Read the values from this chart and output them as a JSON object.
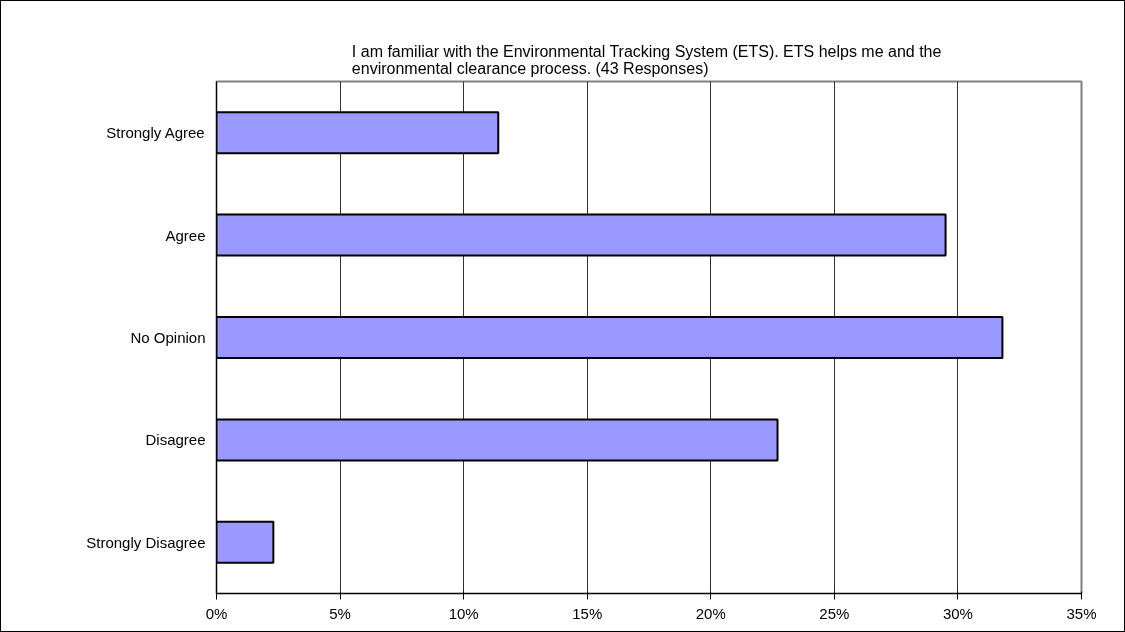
{
  "chart_data": {
    "type": "bar",
    "orientation": "horizontal",
    "title": "I am familiar with the Environmental Tracking System (ETS).  ETS helps me and the\nenvironmental clearance process. (43 Responses)",
    "categories": [
      "Strongly Agree",
      "Agree",
      "No Opinion",
      "Disagree",
      "Strongly Disagree"
    ],
    "values": [
      11.4,
      29.5,
      31.8,
      22.7,
      2.3
    ],
    "color": "#9999ff",
    "xlim": [
      0,
      35
    ],
    "xticks": [
      {
        "value": 0,
        "label": "0%"
      },
      {
        "value": 5,
        "label": "5%"
      },
      {
        "value": 10,
        "label": "10%"
      },
      {
        "value": 15,
        "label": "15%"
      },
      {
        "value": 20,
        "label": "20%"
      },
      {
        "value": 25,
        "label": "25%"
      },
      {
        "value": 30,
        "label": "30%"
      },
      {
        "value": 35,
        "label": "35%"
      }
    ],
    "grid": "x"
  }
}
